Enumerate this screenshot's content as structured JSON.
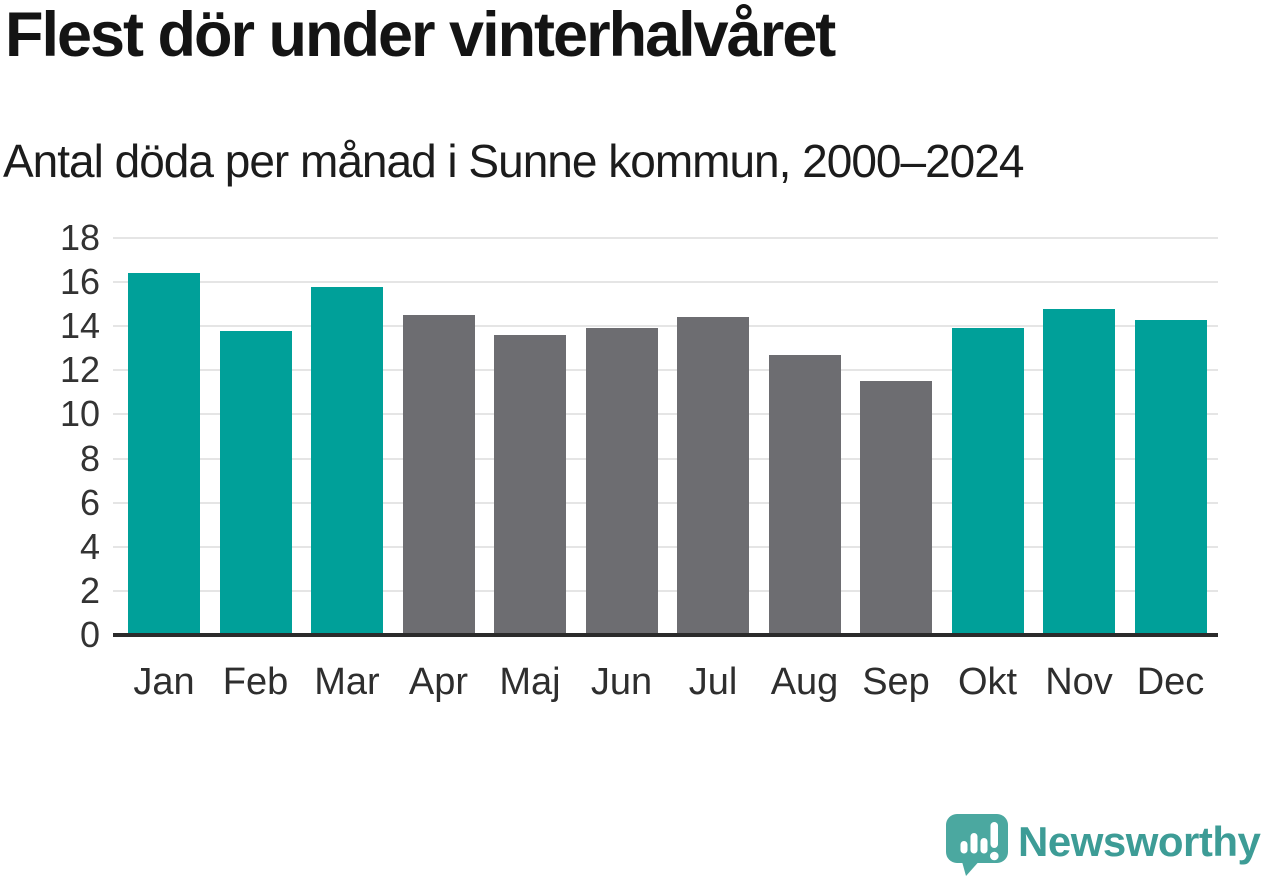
{
  "header": {
    "title": "Flest dör under vinterhalvåret",
    "subtitle": "Antal döda per månad i Sunne kommun, 2000–2024"
  },
  "chart_data": {
    "type": "bar",
    "title": "Flest dör under vinterhalvåret",
    "subtitle": "Antal döda per månad i Sunne kommun, 2000–2024",
    "categories": [
      "Jan",
      "Feb",
      "Mar",
      "Apr",
      "Maj",
      "Jun",
      "Jul",
      "Aug",
      "Sep",
      "Okt",
      "Nov",
      "Dec"
    ],
    "values": [
      16.4,
      13.8,
      15.8,
      14.5,
      13.6,
      13.9,
      14.4,
      12.7,
      11.5,
      13.9,
      14.8,
      14.3
    ],
    "bar_colors": [
      "#00a099",
      "#00a099",
      "#00a099",
      "#6d6d71",
      "#6d6d71",
      "#6d6d71",
      "#6d6d71",
      "#6d6d71",
      "#6d6d71",
      "#00a099",
      "#00a099",
      "#00a099"
    ],
    "highlight_color": "#00a099",
    "base_color": "#6d6d71",
    "highlighted_categories": [
      "Jan",
      "Feb",
      "Mar",
      "Okt",
      "Nov",
      "Dec"
    ],
    "xlabel": "",
    "ylabel": "",
    "ylim": [
      0,
      18
    ],
    "ytick_step": 2,
    "grid": true,
    "gridline_color": "#e5e5e5",
    "axis_line_color": "#2b2b2b",
    "tick_label_color": "#333333",
    "legend": "none"
  },
  "branding": {
    "logo_text": "Newsworthy",
    "logo_icon": "newsworthy-speech-bubble-barchart-icon",
    "icon_color": "#4ba8a0",
    "icon_glyph_color": "#ffffff",
    "text_color": "#3d9c96"
  }
}
